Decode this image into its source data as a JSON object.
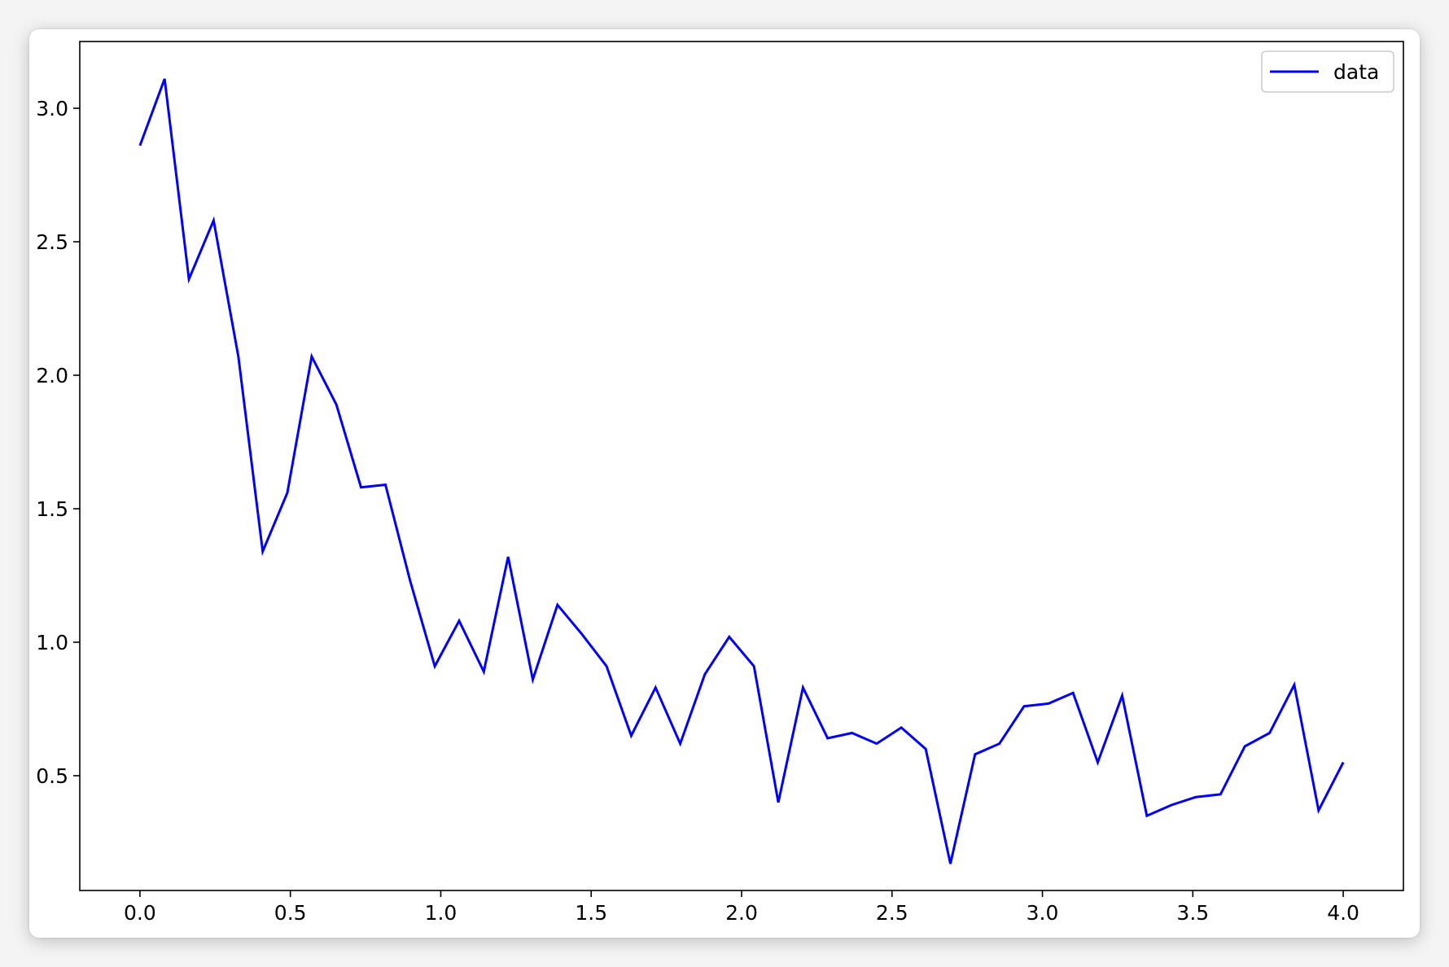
{
  "chart_data": {
    "type": "line",
    "title": "",
    "xlabel": "",
    "ylabel": "",
    "xlim": [
      -0.2,
      4.2
    ],
    "ylim": [
      0.07,
      3.25
    ],
    "xticks": [
      "0.0",
      "0.5",
      "1.0",
      "1.5",
      "2.0",
      "2.5",
      "3.0",
      "3.5",
      "4.0"
    ],
    "yticks": [
      "0.5",
      "1.0",
      "1.5",
      "2.0",
      "2.5",
      "3.0"
    ],
    "grid": false,
    "legend_position": "upper right",
    "colors": {
      "line": "#0000ff",
      "axes": "#000000",
      "background": "#ffffff"
    },
    "series": [
      {
        "name": "data",
        "x": [
          0.0,
          0.082,
          0.163,
          0.245,
          0.327,
          0.408,
          0.49,
          0.571,
          0.653,
          0.735,
          0.816,
          0.898,
          0.98,
          1.061,
          1.143,
          1.224,
          1.306,
          1.388,
          1.469,
          1.551,
          1.633,
          1.714,
          1.796,
          1.878,
          1.959,
          2.041,
          2.122,
          2.204,
          2.286,
          2.367,
          2.449,
          2.531,
          2.612,
          2.694,
          2.776,
          2.857,
          2.939,
          3.02,
          3.102,
          3.184,
          3.265,
          3.347,
          3.429,
          3.51,
          3.592,
          3.673,
          3.755,
          3.837,
          3.918,
          4.0
        ],
        "values": [
          2.86,
          3.11,
          2.36,
          2.58,
          2.07,
          1.34,
          1.56,
          2.07,
          1.89,
          1.58,
          1.59,
          1.23,
          0.91,
          1.08,
          0.89,
          1.32,
          0.86,
          1.14,
          1.03,
          0.91,
          0.65,
          0.83,
          0.62,
          0.88,
          1.02,
          0.91,
          0.4,
          0.83,
          0.64,
          0.66,
          0.62,
          0.68,
          0.6,
          0.17,
          0.58,
          0.62,
          0.76,
          0.77,
          0.81,
          0.55,
          0.8,
          0.35,
          0.39,
          0.42,
          0.43,
          0.61,
          0.66,
          0.84,
          0.37,
          0.55
        ]
      }
    ]
  }
}
